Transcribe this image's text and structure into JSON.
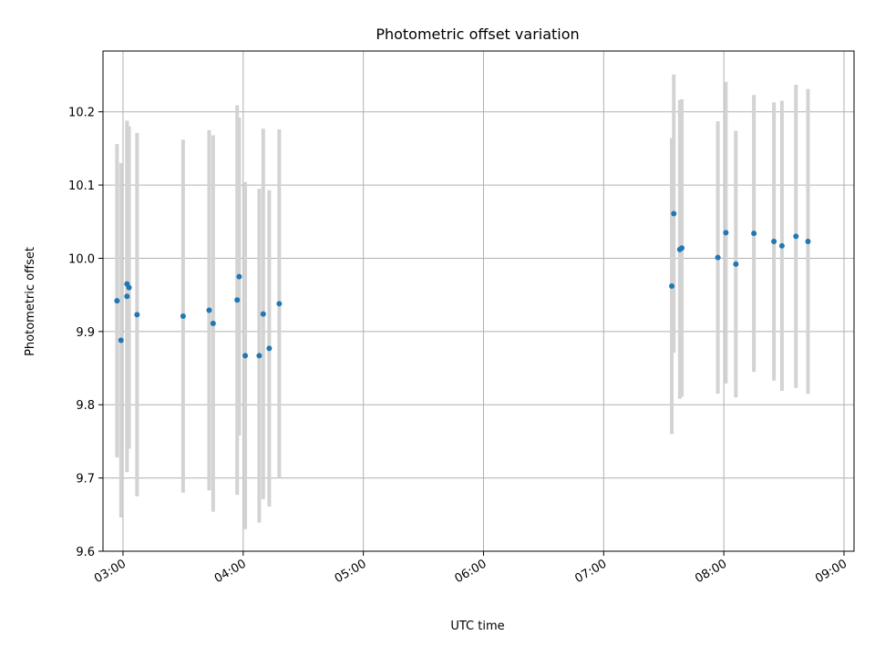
{
  "chart_data": {
    "type": "scatter",
    "title": "Photometric offset variation",
    "xlabel": "UTC time",
    "ylabel": "Photometric offset",
    "ylim": [
      9.6,
      10.283
    ],
    "xlim": [
      "02:50",
      "09:05"
    ],
    "grid": true,
    "x_ticks": [
      "03:00",
      "04:00",
      "05:00",
      "06:00",
      "07:00",
      "08:00",
      "09:00"
    ],
    "y_ticks": [
      "9.6",
      "9.7",
      "9.8",
      "9.9",
      "10.0",
      "10.1",
      "10.2"
    ],
    "marker_color": "#1f77b4",
    "errorbar_color": "#d3d3d3",
    "points": [
      {
        "time": "02:57",
        "y": 9.942,
        "err": 0.214
      },
      {
        "time": "02:59",
        "y": 9.888,
        "err": 0.242
      },
      {
        "time": "03:02",
        "y": 9.948,
        "err": 0.24
      },
      {
        "time": "03:02",
        "y": 9.965,
        "err": 0.22
      },
      {
        "time": "03:03",
        "y": 9.96,
        "err": 0.22
      },
      {
        "time": "03:07",
        "y": 9.923,
        "err": 0.248
      },
      {
        "time": "03:30",
        "y": 9.921,
        "err": 0.241
      },
      {
        "time": "03:43",
        "y": 9.929,
        "err": 0.246
      },
      {
        "time": "03:45",
        "y": 9.911,
        "err": 0.257
      },
      {
        "time": "03:57",
        "y": 9.943,
        "err": 0.266
      },
      {
        "time": "03:58",
        "y": 9.975,
        "err": 0.217
      },
      {
        "time": "04:01",
        "y": 9.867,
        "err": 0.237
      },
      {
        "time": "04:08",
        "y": 9.867,
        "err": 0.228
      },
      {
        "time": "04:10",
        "y": 9.924,
        "err": 0.253
      },
      {
        "time": "04:13",
        "y": 9.877,
        "err": 0.216
      },
      {
        "time": "04:18",
        "y": 9.938,
        "err": 0.238
      },
      {
        "time": "07:34",
        "y": 9.962,
        "err": 0.202
      },
      {
        "time": "07:35",
        "y": 10.061,
        "err": 0.19
      },
      {
        "time": "07:38",
        "y": 10.012,
        "err": 0.204
      },
      {
        "time": "07:39",
        "y": 10.014,
        "err": 0.203
      },
      {
        "time": "07:57",
        "y": 10.001,
        "err": 0.186
      },
      {
        "time": "08:01",
        "y": 10.035,
        "err": 0.206
      },
      {
        "time": "08:06",
        "y": 9.992,
        "err": 0.182
      },
      {
        "time": "08:15",
        "y": 10.034,
        "err": 0.189
      },
      {
        "time": "08:25",
        "y": 10.023,
        "err": 0.19
      },
      {
        "time": "08:29",
        "y": 10.017,
        "err": 0.198
      },
      {
        "time": "08:36",
        "y": 10.03,
        "err": 0.207
      },
      {
        "time": "08:42",
        "y": 10.023,
        "err": 0.208
      }
    ]
  }
}
